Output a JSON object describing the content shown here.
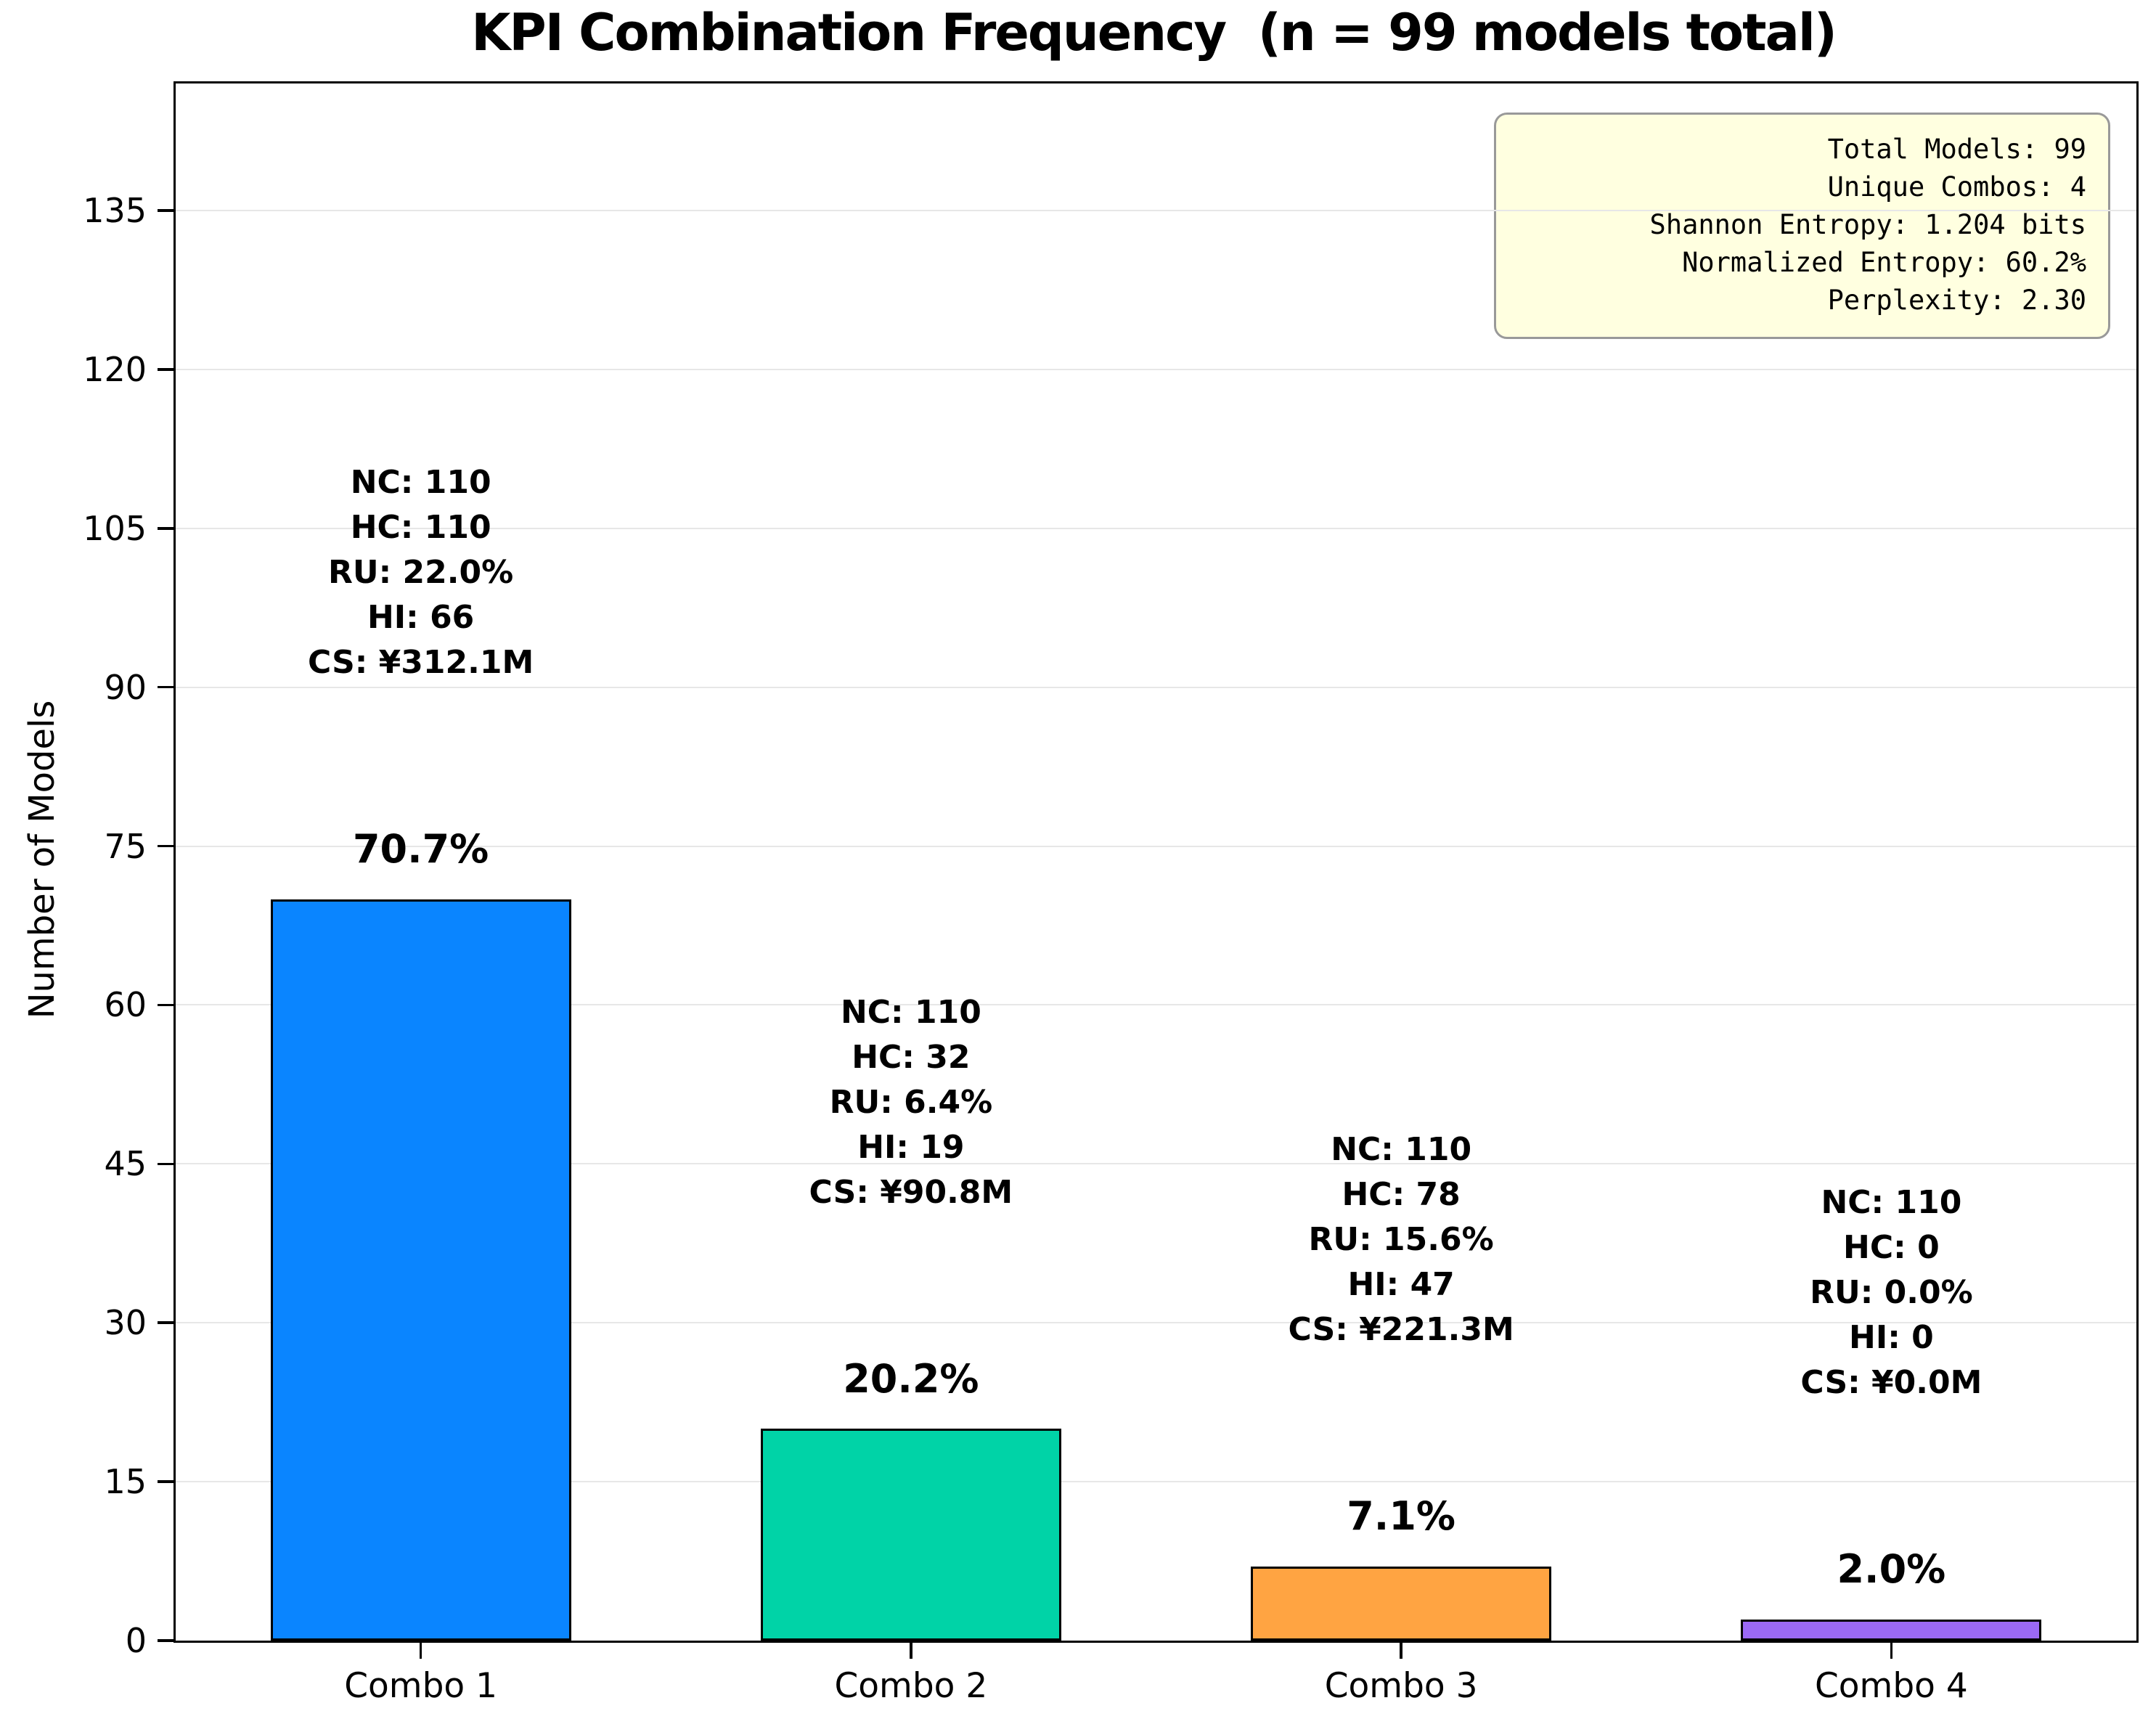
{
  "chart_data": {
    "type": "bar",
    "title": "KPI Combination Frequency  (n = 99 models total)",
    "ylabel": "Number of Models",
    "xlabel": "",
    "categories": [
      "Combo 1",
      "Combo 2",
      "Combo 3",
      "Combo 4"
    ],
    "values": [
      70,
      20,
      7,
      2
    ],
    "percent_labels": [
      "70.7%",
      "20.2%",
      "7.1%",
      "2.0%"
    ],
    "bar_colors": [
      "#0a85ff",
      "#00d3a7",
      "#ffa442",
      "#9b69f5"
    ],
    "bar_edge_color": "#000000",
    "annotations": [
      [
        "NC: 110",
        "HC: 110",
        "RU: 22.0%",
        "HI: 66",
        "CS: ¥312.1M"
      ],
      [
        "NC: 110",
        "HC: 32",
        "RU: 6.4%",
        "HI: 19",
        "CS: ¥90.8M"
      ],
      [
        "NC: 110",
        "HC: 78",
        "RU: 15.6%",
        "HI: 47",
        "CS: ¥221.3M"
      ],
      [
        "NC: 110",
        "HC: 0",
        "RU: 0.0%",
        "HI: 0",
        "CS: ¥0.0M"
      ]
    ],
    "yticks": [
      0,
      15,
      30,
      45,
      60,
      75,
      90,
      105,
      120,
      135
    ],
    "ylim": [
      0,
      147
    ],
    "grid": true,
    "grid_color": "#e7e7e7",
    "legend": "none",
    "stats_box": {
      "lines": [
        "Total Models: 99",
        "Unique Combos: 4",
        "Shannon Entropy: 1.204 bits",
        "Normalized Entropy: 60.2%",
        "Perplexity: 2.30"
      ],
      "background": "#ffffe0",
      "border_color": "#999999",
      "position": "top-right"
    }
  }
}
